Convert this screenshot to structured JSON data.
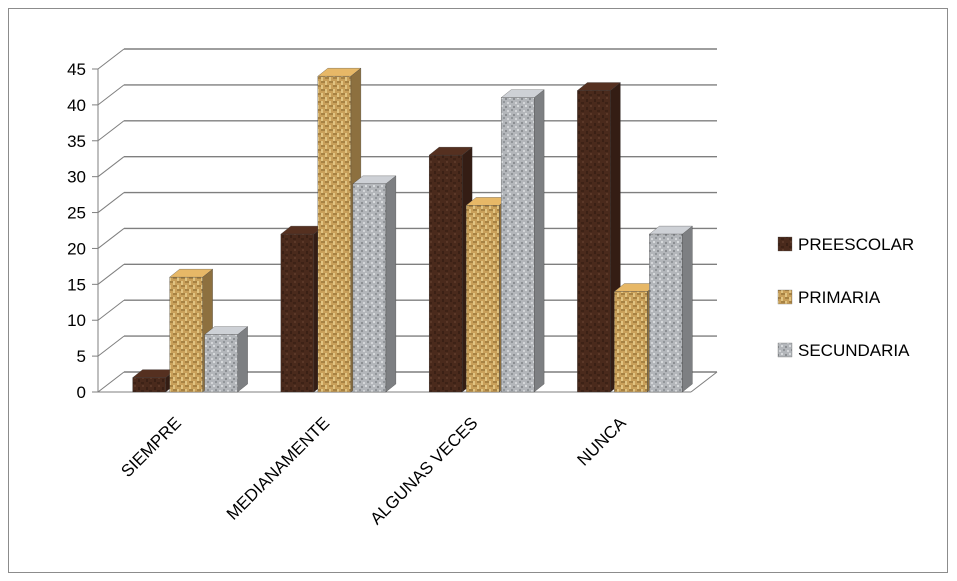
{
  "chart_data": {
    "type": "bar",
    "style": "3d-clustered-column",
    "title": "",
    "xlabel": "",
    "ylabel": "",
    "categories": [
      "SIEMPRE",
      "MEDIANAMENTE",
      "ALGUNAS VECES",
      "NUNCA"
    ],
    "series": [
      {
        "name": "PREESCOLAR",
        "values": [
          2,
          22,
          33,
          42
        ],
        "color": "#4a2a1c"
      },
      {
        "name": "PRIMARIA",
        "values": [
          16,
          44,
          26,
          14
        ],
        "color": "#c9a05a"
      },
      {
        "name": "SECUNDARIA",
        "values": [
          8,
          29,
          41,
          22
        ],
        "color": "#b3b6ba"
      }
    ],
    "ylim": [
      0,
      45
    ],
    "yticks": [
      0,
      5,
      10,
      15,
      20,
      25,
      30,
      35,
      40,
      45
    ],
    "grid": true,
    "legend_position": "right"
  }
}
